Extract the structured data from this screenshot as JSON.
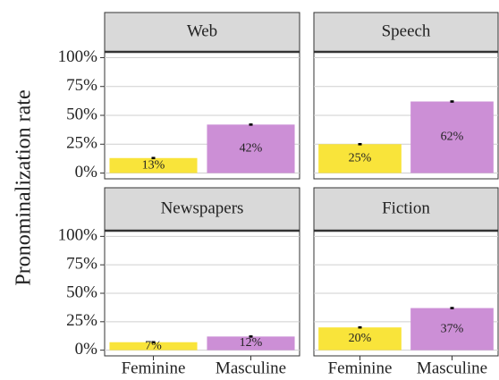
{
  "y_label": "Pronominalization rate",
  "chart_data": [
    {
      "type": "bar",
      "title": "Web",
      "values": [
        13,
        42
      ],
      "value_labels": [
        "13%",
        "42%"
      ],
      "errors": [
        1,
        1
      ],
      "colors": [
        "#f9e43a",
        "#cc8fd6"
      ],
      "ylim": [
        -5,
        105
      ],
      "yticks": [
        {
          "value": 0,
          "label": "0%"
        },
        {
          "value": 25,
          "label": "25%"
        },
        {
          "value": 50,
          "label": "50%"
        },
        {
          "value": 75,
          "label": "75%"
        },
        {
          "value": 100,
          "label": "100%"
        }
      ]
    },
    {
      "type": "bar",
      "title": "Speech",
      "values": [
        25,
        62
      ],
      "value_labels": [
        "25%",
        "62%"
      ],
      "errors": [
        1,
        1
      ],
      "colors": [
        "#f9e43a",
        "#cc8fd6"
      ],
      "ylim": [
        -5,
        105
      ],
      "yticks": [
        0,
        25,
        50,
        75,
        100
      ]
    },
    {
      "type": "bar",
      "title": "Newspapers",
      "categories": [
        "Feminine",
        "Masculine"
      ],
      "values": [
        7,
        12
      ],
      "value_labels": [
        "7%",
        "12%"
      ],
      "errors": [
        1,
        1
      ],
      "colors": [
        "#f9e43a",
        "#cc8fd6"
      ],
      "ylim": [
        -5,
        105
      ],
      "yticks": [
        {
          "value": 0,
          "label": "0%"
        },
        {
          "value": 25,
          "label": "25%"
        },
        {
          "value": 50,
          "label": "50%"
        },
        {
          "value": 75,
          "label": "75%"
        },
        {
          "value": 100,
          "label": "100%"
        }
      ]
    },
    {
      "type": "bar",
      "title": "Fiction",
      "categories": [
        "Feminine",
        "Masculine"
      ],
      "values": [
        20,
        37
      ],
      "value_labels": [
        "20%",
        "37%"
      ],
      "errors": [
        1,
        1
      ],
      "colors": [
        "#f9e43a",
        "#cc8fd6"
      ],
      "ylim": [
        -5,
        105
      ],
      "yticks": [
        0,
        25,
        50,
        75,
        100
      ]
    }
  ]
}
